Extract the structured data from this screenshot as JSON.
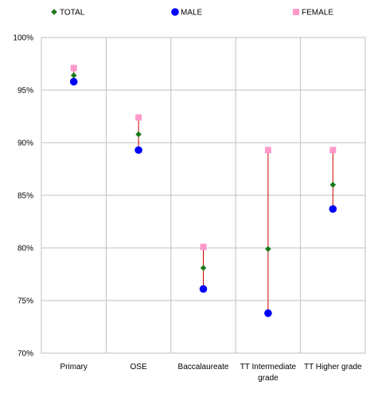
{
  "chart_data": {
    "type": "scatter",
    "title": "",
    "xlabel": "",
    "ylabel": "",
    "categories": [
      "Primary",
      "OSE",
      "Baccalaureate",
      "TT Intermediate grade",
      "TT Higher grade"
    ],
    "category_label_lines": [
      [
        "Primary"
      ],
      [
        "OSE"
      ],
      [
        "Baccalaureate"
      ],
      [
        "TT Intermediate",
        "grade"
      ],
      [
        "TT Higher grade"
      ]
    ],
    "series": [
      {
        "name": "TOTAL",
        "marker": "diamond",
        "color": "#1a7a1a",
        "values": [
          96.4,
          90.8,
          78.1,
          79.9,
          86.0
        ]
      },
      {
        "name": "MALE",
        "marker": "circle",
        "color": "#0000ff",
        "values": [
          95.8,
          89.3,
          76.1,
          73.8,
          83.7
        ]
      },
      {
        "name": "FEMALE",
        "marker": "square",
        "color": "#ff99cc",
        "values": [
          97.1,
          92.4,
          80.1,
          89.3,
          89.3
        ]
      }
    ],
    "range_line_color": "#cc0000",
    "ylim": [
      70,
      100
    ],
    "yticks": [
      70,
      75,
      80,
      85,
      90,
      95,
      100
    ],
    "ytick_labels": [
      "70%",
      "75%",
      "80%",
      "85%",
      "90%",
      "95%",
      "100%"
    ],
    "grid": true,
    "legend_position": "top"
  }
}
